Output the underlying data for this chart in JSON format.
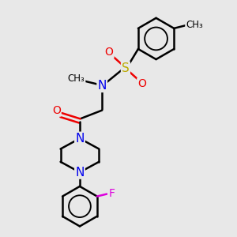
{
  "bg_color": "#e8e8e8",
  "bond_color": "#000000",
  "atom_colors": {
    "N": "#0000ee",
    "O": "#ee0000",
    "S": "#bbaa00",
    "F": "#dd00dd",
    "C": "#000000"
  },
  "bond_width": 1.8,
  "figsize": [
    3.0,
    3.0
  ],
  "dpi": 100,
  "xlim": [
    0,
    10
  ],
  "ylim": [
    0,
    10
  ]
}
